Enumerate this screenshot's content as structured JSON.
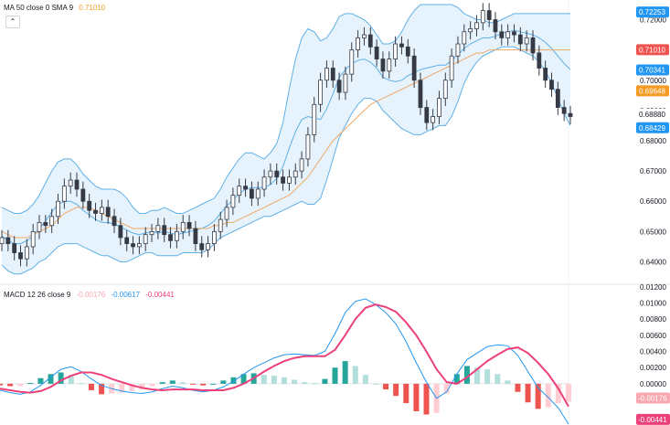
{
  "legend_top": {
    "label": "MA 50 close 0 SMA 9",
    "value": "0.71010",
    "value_color": "#f59a23"
  },
  "legend_bottom": {
    "label": "MACD 12 26 close 9",
    "v1": "-0.00176",
    "v1_color": "#f7a8b0",
    "v2": "-0.00617",
    "v2_color": "#2196f3",
    "v3": "-0.00441",
    "v3_color": "#ec407a"
  },
  "collapse_icon": "chevron-up-icon",
  "colors": {
    "up": "#26a69a",
    "down": "#ef5350",
    "candle": "#363a45",
    "bands": "#5fb0e6",
    "band_fill": "#e3f2fd",
    "ma": "#f0a868",
    "macd": "#2196f3",
    "signal": "#ec407a"
  },
  "chart_data": [
    {
      "type": "candlestick",
      "title": "",
      "y_ticks": [
        "0.72000",
        "0.70000",
        "0.69000",
        "0.68000",
        "0.67000",
        "0.66000",
        "0.65000",
        "0.64000"
      ],
      "ylim": [
        0.6335,
        0.7265
      ],
      "price_labels": [
        {
          "text": "0.72253",
          "value": 0.72253,
          "color": "#2196f3"
        },
        {
          "text": "0.71010",
          "value": 0.7101,
          "color": "#ef5350"
        },
        {
          "text": "0.70341",
          "value": 0.70341,
          "color": "#2196f3"
        },
        {
          "text": "0.69648",
          "value": 0.69648,
          "color": "#f59a23"
        },
        {
          "text": "0.68880",
          "value": 0.6888,
          "color": "#ffffff"
        },
        {
          "text": "0.68429",
          "value": 0.68429,
          "color": "#2196f3"
        }
      ],
      "close_series": [
        0.648,
        0.646,
        0.643,
        0.641,
        0.645,
        0.65,
        0.653,
        0.652,
        0.655,
        0.66,
        0.665,
        0.667,
        0.664,
        0.66,
        0.657,
        0.656,
        0.658,
        0.655,
        0.652,
        0.648,
        0.646,
        0.645,
        0.646,
        0.649,
        0.65,
        0.652,
        0.649,
        0.647,
        0.65,
        0.653,
        0.651,
        0.646,
        0.644,
        0.646,
        0.65,
        0.654,
        0.658,
        0.662,
        0.665,
        0.664,
        0.661,
        0.664,
        0.668,
        0.67,
        0.668,
        0.666,
        0.668,
        0.67,
        0.674,
        0.682,
        0.692,
        0.7,
        0.704,
        0.7,
        0.696,
        0.702,
        0.71,
        0.714,
        0.715,
        0.711,
        0.707,
        0.703,
        0.707,
        0.712,
        0.711,
        0.708,
        0.7,
        0.691,
        0.686,
        0.688,
        0.694,
        0.7,
        0.708,
        0.712,
        0.716,
        0.717,
        0.719,
        0.723,
        0.72,
        0.716,
        0.714,
        0.716,
        0.715,
        0.712,
        0.714,
        0.709,
        0.704,
        0.7,
        0.697,
        0.691,
        0.689,
        0.688
      ],
      "upper_band": [
        0.658,
        0.657,
        0.656,
        0.656,
        0.657,
        0.659,
        0.662,
        0.666,
        0.67,
        0.673,
        0.674,
        0.674,
        0.672,
        0.669,
        0.667,
        0.665,
        0.664,
        0.664,
        0.664,
        0.663,
        0.661,
        0.658,
        0.656,
        0.656,
        0.657,
        0.657,
        0.658,
        0.657,
        0.656,
        0.656,
        0.657,
        0.658,
        0.659,
        0.66,
        0.661,
        0.664,
        0.668,
        0.671,
        0.674,
        0.676,
        0.676,
        0.675,
        0.674,
        0.676,
        0.679,
        0.686,
        0.697,
        0.707,
        0.714,
        0.717,
        0.716,
        0.713,
        0.714,
        0.717,
        0.721,
        0.722,
        0.722,
        0.721,
        0.72,
        0.718,
        0.715,
        0.712,
        0.712,
        0.713,
        0.716,
        0.72,
        0.723,
        0.725,
        0.725,
        0.725,
        0.725,
        0.725,
        0.725,
        0.724,
        0.722,
        0.721,
        0.72,
        0.72,
        0.719,
        0.719,
        0.72,
        0.721,
        0.722,
        0.722,
        0.722,
        0.722,
        0.722,
        0.722,
        0.722,
        0.722,
        0.722,
        0.722
      ],
      "lower_band": [
        0.639,
        0.637,
        0.636,
        0.636,
        0.637,
        0.638,
        0.64,
        0.641,
        0.643,
        0.645,
        0.646,
        0.646,
        0.646,
        0.645,
        0.644,
        0.643,
        0.642,
        0.642,
        0.641,
        0.64,
        0.64,
        0.641,
        0.642,
        0.643,
        0.643,
        0.642,
        0.642,
        0.642,
        0.642,
        0.643,
        0.643,
        0.643,
        0.643,
        0.644,
        0.646,
        0.648,
        0.649,
        0.65,
        0.651,
        0.652,
        0.653,
        0.654,
        0.655,
        0.655,
        0.656,
        0.657,
        0.658,
        0.659,
        0.66,
        0.659,
        0.659,
        0.661,
        0.667,
        0.674,
        0.681,
        0.685,
        0.689,
        0.692,
        0.694,
        0.694,
        0.693,
        0.69,
        0.688,
        0.686,
        0.684,
        0.683,
        0.682,
        0.682,
        0.683,
        0.684,
        0.685,
        0.685,
        0.688,
        0.693,
        0.699,
        0.703,
        0.706,
        0.708,
        0.709,
        0.71,
        0.711,
        0.711,
        0.711,
        0.71,
        0.709,
        0.708,
        0.706,
        0.703,
        0.699,
        0.694,
        0.689,
        0.685
      ],
      "ma": [
        0.65,
        0.649,
        0.648,
        0.648,
        0.648,
        0.649,
        0.65,
        0.651,
        0.652,
        0.654,
        0.656,
        0.657,
        0.658,
        0.658,
        0.658,
        0.657,
        0.656,
        0.655,
        0.654,
        0.653,
        0.652,
        0.651,
        0.651,
        0.651,
        0.651,
        0.651,
        0.651,
        0.651,
        0.651,
        0.651,
        0.651,
        0.651,
        0.651,
        0.651,
        0.652,
        0.652,
        0.653,
        0.653,
        0.654,
        0.655,
        0.656,
        0.657,
        0.658,
        0.659,
        0.66,
        0.661,
        0.662,
        0.664,
        0.666,
        0.668,
        0.671,
        0.674,
        0.677,
        0.68,
        0.682,
        0.684,
        0.686,
        0.688,
        0.69,
        0.692,
        0.693,
        0.694,
        0.695,
        0.696,
        0.697,
        0.698,
        0.699,
        0.7,
        0.701,
        0.702,
        0.703,
        0.704,
        0.705,
        0.706,
        0.707,
        0.708,
        0.709,
        0.709,
        0.71,
        0.71,
        0.71,
        0.71,
        0.71,
        0.71,
        0.71,
        0.71,
        0.71,
        0.71,
        0.71,
        0.71,
        0.71,
        0.71
      ]
    },
    {
      "type": "bar",
      "title": "",
      "y_ticks": [
        "0.01200",
        "0.01000",
        "0.00800",
        "0.00600",
        "0.00400",
        "0.00200",
        "0.00000"
      ],
      "ylim": [
        -0.0051,
        0.0122
      ],
      "value_labels": [
        {
          "text": "-0.00176",
          "value": -0.00176,
          "color": "#f7a8b0"
        },
        {
          "text": "-0.00441",
          "value": -0.00441,
          "color": "#ec407a"
        }
      ],
      "series": [
        {
          "name": "MACD",
          "values": [
            -0.0008,
            -0.0011,
            -0.0013,
            -0.001,
            -0.0002,
            0.0008,
            0.0018,
            0.0021,
            0.0015,
            0.0006,
            -0.0002,
            -0.0006,
            -0.0009,
            -0.0011,
            -0.0012,
            -0.001,
            -0.0006,
            -0.0003,
            -0.0005,
            -0.0008,
            -0.001,
            -0.0008,
            -0.0004,
            0.0003,
            0.0012,
            0.002,
            0.0026,
            0.0032,
            0.0036,
            0.0037,
            0.0036,
            0.0035,
            0.004,
            0.0062,
            0.0088,
            0.0102,
            0.0105,
            0.0098,
            0.0088,
            0.0074,
            0.0052,
            0.0026,
            0.0002,
            -0.0018,
            -0.001,
            0.0012,
            0.003,
            0.0038,
            0.0046,
            0.0048,
            0.0047,
            0.0035,
            0.0015,
            -0.0005,
            -0.0017,
            -0.003,
            -0.005
          ]
        },
        {
          "name": "Signal",
          "values": [
            -0.0006,
            -0.0008,
            -0.001,
            -0.0011,
            -0.0009,
            -0.0004,
            0.0004,
            0.001,
            0.0014,
            0.0014,
            0.0011,
            0.0006,
            0.0002,
            -0.0002,
            -0.0005,
            -0.0007,
            -0.0008,
            -0.0007,
            -0.0007,
            -0.0007,
            -0.0008,
            -0.0008,
            -0.0008,
            -0.0005,
            0.0,
            0.0007,
            0.0015,
            0.0022,
            0.0028,
            0.0032,
            0.0034,
            0.0034,
            0.0034,
            0.0042,
            0.006,
            0.008,
            0.0094,
            0.0098,
            0.0095,
            0.0089,
            0.0076,
            0.006,
            0.004,
            0.0018,
            0.0002,
            0.0,
            0.0008,
            0.0018,
            0.0028,
            0.0036,
            0.0043,
            0.0045,
            0.0038,
            0.0026,
            0.0012,
            -0.0006,
            -0.0028
          ]
        }
      ]
    }
  ]
}
